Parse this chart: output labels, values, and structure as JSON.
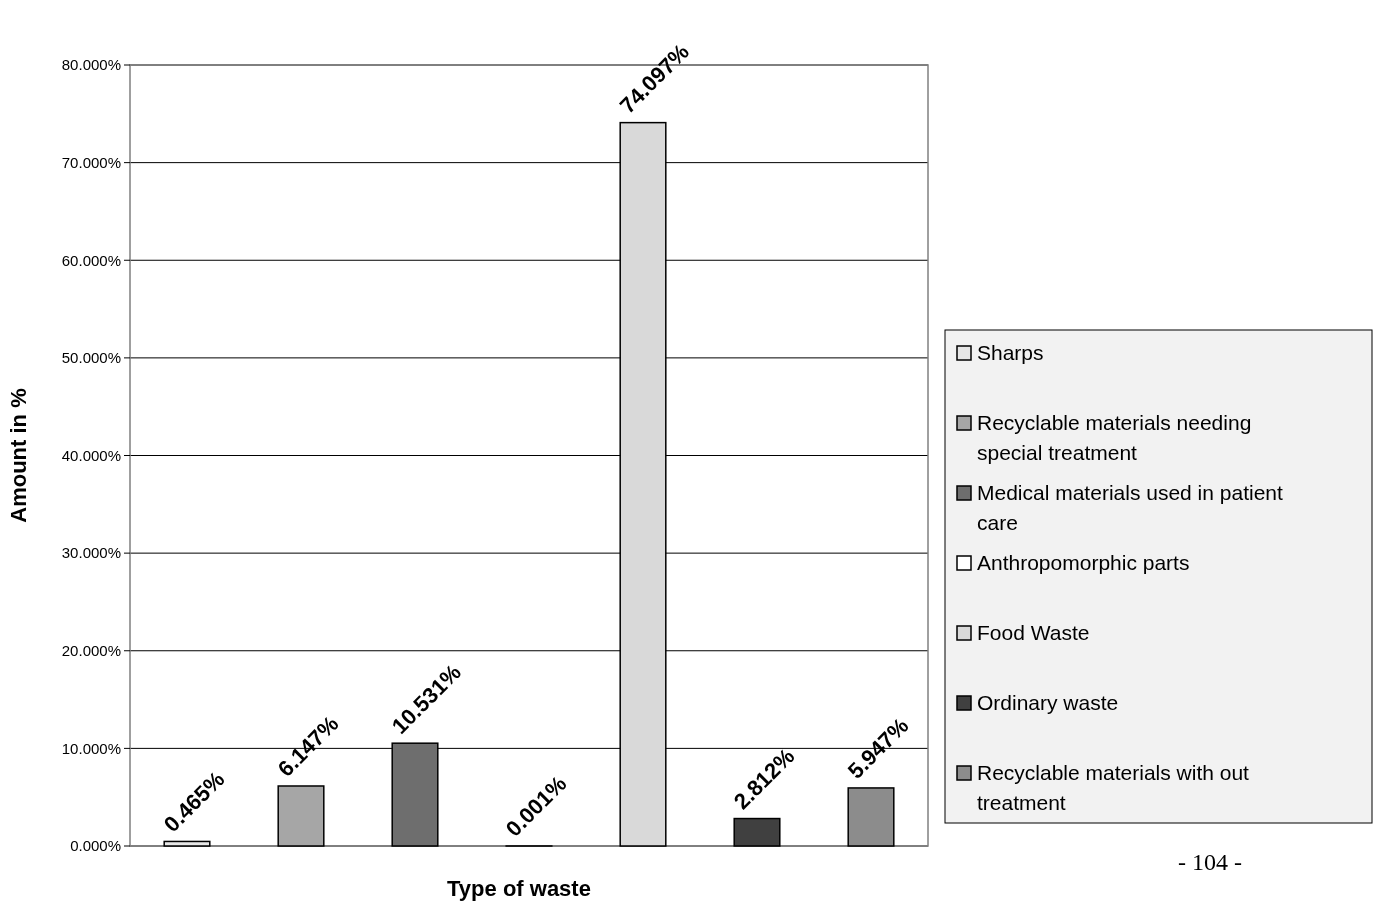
{
  "chart_data": {
    "type": "bar",
    "xlabel": "Type of waste",
    "ylabel": "Amount in %",
    "categories": [
      null
    ],
    "series": [
      {
        "name": "Sharps",
        "color": "#e6e6e6",
        "values": [
          0.465
        ],
        "value_labels": [
          "0.465%"
        ]
      },
      {
        "name": "Recyclable materials needing special treatment",
        "color": "#a6a6a6",
        "values": [
          6.147
        ],
        "value_labels": [
          "6.147%"
        ]
      },
      {
        "name": "Medical materials used in patient care",
        "color": "#6e6e6e",
        "values": [
          10.531
        ],
        "value_labels": [
          "10.531%"
        ]
      },
      {
        "name": "Anthropomorphic parts",
        "color": "#ffffff",
        "values": [
          0.001
        ],
        "value_labels": [
          "0.001%"
        ]
      },
      {
        "name": "Food Waste",
        "color": "#d9d9d9",
        "values": [
          74.097
        ],
        "value_labels": [
          "74.097%"
        ]
      },
      {
        "name": "Ordinary waste",
        "color": "#404040",
        "values": [
          2.812
        ],
        "value_labels": [
          "2.812%"
        ]
      },
      {
        "name": "Recyclable materials with out treatment",
        "color": "#8c8c8c",
        "values": [
          5.947
        ],
        "value_labels": [
          "5.947%"
        ]
      }
    ],
    "ylim": [
      0,
      80
    ],
    "yticks": [
      {
        "value": 0,
        "label": "0.000%"
      },
      {
        "value": 10,
        "label": "10.000%"
      },
      {
        "value": 20,
        "label": "20.000%"
      },
      {
        "value": 30,
        "label": "30.000%"
      },
      {
        "value": 40,
        "label": "40.000%"
      },
      {
        "value": 50,
        "label": "50.000%"
      },
      {
        "value": 60,
        "label": "60.000%"
      },
      {
        "value": 70,
        "label": "70.000%"
      },
      {
        "value": 80,
        "label": "80.000%"
      }
    ],
    "grid": "y",
    "legend": "right",
    "annotations": [
      "- 104 -"
    ]
  }
}
